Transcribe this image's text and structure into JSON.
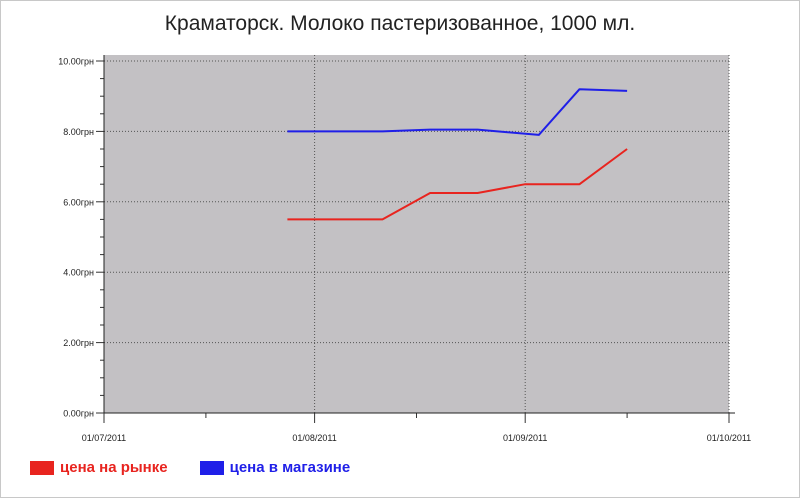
{
  "chart_data": {
    "type": "line",
    "title": "Краматорск. Молоко пастеризованное, 1000 мл.",
    "xlabel": "",
    "ylabel": "",
    "x_axis": {
      "ticks": [
        "01/07/2011",
        "01/08/2011",
        "01/09/2011",
        "01/10/2011"
      ],
      "range": [
        "2011-07-01",
        "2011-10-01"
      ]
    },
    "y_axis": {
      "ticks": [
        "0.00грн",
        "2.00грн",
        "4.00грн",
        "6.00грн",
        "8.00грн",
        "10.00грн"
      ],
      "range": [
        0,
        10
      ]
    },
    "grid": true,
    "legend_position": "bottom-left",
    "series": [
      {
        "name": "цена на рынке",
        "color": "#e8241f",
        "points": [
          {
            "x": "2011-07-28",
            "y": 5.5
          },
          {
            "x": "2011-08-04",
            "y": 5.5
          },
          {
            "x": "2011-08-11",
            "y": 5.5
          },
          {
            "x": "2011-08-18",
            "y": 6.25
          },
          {
            "x": "2011-08-25",
            "y": 6.25
          },
          {
            "x": "2011-09-01",
            "y": 6.5
          },
          {
            "x": "2011-09-09",
            "y": 6.5
          },
          {
            "x": "2011-09-16",
            "y": 7.5
          }
        ]
      },
      {
        "name": "цена в магазине",
        "color": "#1f1fe8",
        "points": [
          {
            "x": "2011-07-28",
            "y": 8.0
          },
          {
            "x": "2011-08-04",
            "y": 8.0
          },
          {
            "x": "2011-08-11",
            "y": 8.0
          },
          {
            "x": "2011-08-18",
            "y": 8.05
          },
          {
            "x": "2011-08-25",
            "y": 8.05
          },
          {
            "x": "2011-09-03",
            "y": 7.9
          },
          {
            "x": "2011-09-09",
            "y": 9.2
          },
          {
            "x": "2011-09-16",
            "y": 9.15
          }
        ]
      }
    ],
    "colors": {
      "plot_background": "#c3c1c4",
      "grid": "#555555"
    }
  }
}
